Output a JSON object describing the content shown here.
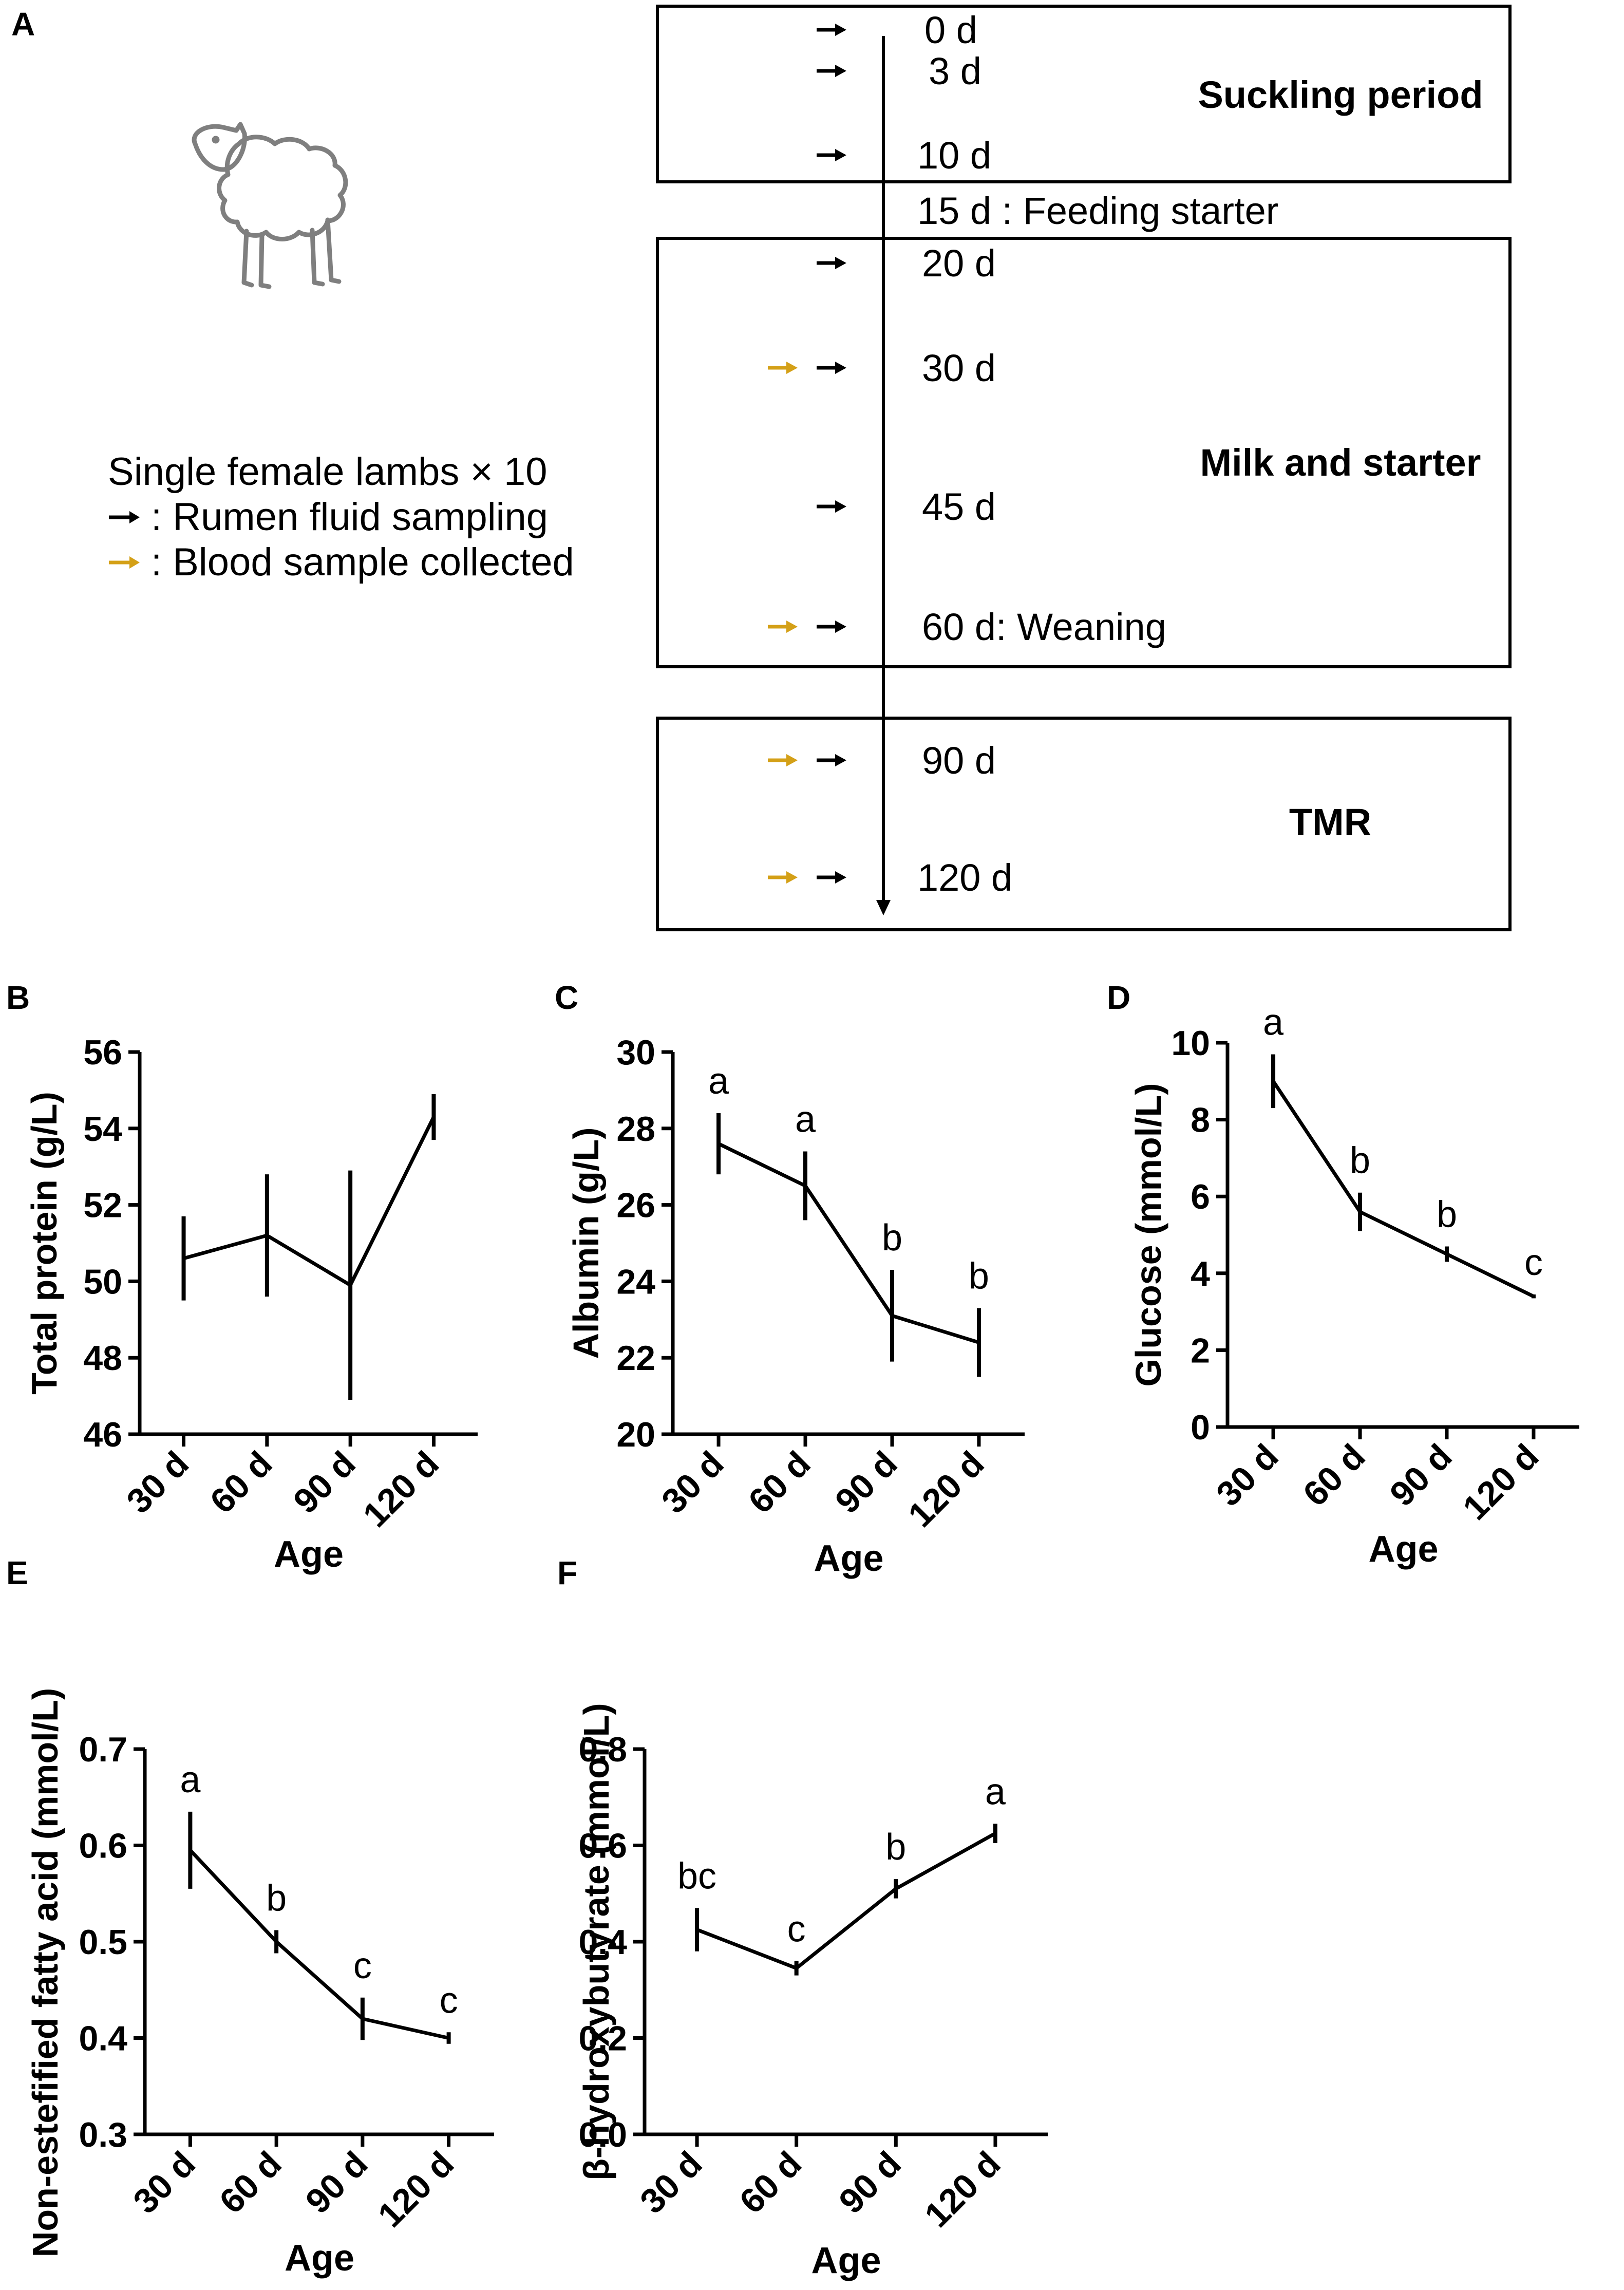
{
  "panel_labels": {
    "a": "A",
    "b": "B",
    "c": "C",
    "d": "D",
    "e": "E",
    "f": "F"
  },
  "colors": {
    "black_arrow": "#000000",
    "gold_arrow": "#D4A017",
    "sheep": "#7f7f7f",
    "line": "#000000"
  },
  "timeline": {
    "legend": {
      "subjects": "Single female lambs × 10",
      "rumen": ": Rumen fluid sampling",
      "blood": ": Blood sample collected"
    },
    "periods": [
      {
        "name": "Suckling period"
      },
      {
        "name": "Milk and starter"
      },
      {
        "name": "TMR"
      }
    ],
    "events": [
      {
        "label": "0 d",
        "rumen": true,
        "blood": false
      },
      {
        "label": "3 d",
        "rumen": true,
        "blood": false
      },
      {
        "label": "10 d",
        "rumen": true,
        "blood": false
      },
      {
        "label": "15 d : Feeding starter",
        "rumen": false,
        "blood": false
      },
      {
        "label": "20 d",
        "rumen": true,
        "blood": false
      },
      {
        "label": "30 d",
        "rumen": true,
        "blood": true
      },
      {
        "label": "45 d",
        "rumen": true,
        "blood": false
      },
      {
        "label": "60 d: Weaning",
        "rumen": true,
        "blood": true
      },
      {
        "label": "90 d",
        "rumen": true,
        "blood": true
      },
      {
        "label": "120 d",
        "rumen": true,
        "blood": true
      }
    ]
  },
  "chart_data": [
    {
      "id": "b",
      "type": "line",
      "title": "",
      "xlabel": "Age",
      "ylabel": "Total protein (g/L)",
      "categories": [
        "30 d",
        "60 d",
        "90 d",
        "120 d"
      ],
      "values": [
        50.6,
        51.2,
        49.9,
        54.3
      ],
      "errors": [
        1.1,
        1.6,
        3.0,
        0.6
      ],
      "letters": [
        "",
        "",
        "",
        ""
      ],
      "ylim": [
        46,
        56
      ],
      "yticks": [
        "46",
        "48",
        "50",
        "52",
        "54",
        "56"
      ]
    },
    {
      "id": "c",
      "type": "line",
      "title": "",
      "xlabel": "Age",
      "ylabel": "Albumin (g/L)",
      "categories": [
        "30 d",
        "60 d",
        "90 d",
        "120 d"
      ],
      "values": [
        27.6,
        26.5,
        23.1,
        22.4
      ],
      "errors": [
        0.8,
        0.9,
        1.2,
        0.9
      ],
      "letters": [
        "a",
        "a",
        "b",
        "b"
      ],
      "ylim": [
        20,
        30
      ],
      "yticks": [
        "20",
        "22",
        "24",
        "26",
        "28",
        "30"
      ]
    },
    {
      "id": "d",
      "type": "line",
      "title": "",
      "xlabel": "Age",
      "ylabel": "Glucose (mmol/L)",
      "categories": [
        "30 d",
        "60 d",
        "90 d",
        "120 d"
      ],
      "values": [
        9.0,
        5.6,
        4.5,
        3.4
      ],
      "errors": [
        0.7,
        0.5,
        0.2,
        0.05
      ],
      "letters": [
        "a",
        "b",
        "b",
        "c"
      ],
      "ylim": [
        0,
        10
      ],
      "yticks": [
        "0",
        "2",
        "4",
        "6",
        "8",
        "10"
      ]
    },
    {
      "id": "e",
      "type": "line",
      "title": "",
      "xlabel": "Age",
      "ylabel": "Non-estefified fatty acid (mmol/L)",
      "categories": [
        "30 d",
        "60 d",
        "90 d",
        "120 d"
      ],
      "values": [
        0.595,
        0.5,
        0.42,
        0.4
      ],
      "errors": [
        0.04,
        0.012,
        0.022,
        0.006
      ],
      "letters": [
        "a",
        "b",
        "c",
        "c"
      ],
      "ylim": [
        0.3,
        0.7
      ],
      "yticks": [
        "0.3",
        "0.4",
        "0.5",
        "0.6",
        "0.7"
      ]
    },
    {
      "id": "f",
      "type": "line",
      "title": "",
      "xlabel": "Age",
      "ylabel": "β-hydroxybutyrate (mmol/L)",
      "categories": [
        "30 d",
        "60 d",
        "90 d",
        "120 d"
      ],
      "values": [
        0.425,
        0.345,
        0.51,
        0.625
      ],
      "errors": [
        0.045,
        0.015,
        0.02,
        0.02
      ],
      "letters": [
        "bc",
        "c",
        "b",
        "a"
      ],
      "ylim": [
        0.0,
        0.8
      ],
      "yticks": [
        "0.0",
        "0.2",
        "0.4",
        "0.6",
        "0.8"
      ]
    }
  ]
}
